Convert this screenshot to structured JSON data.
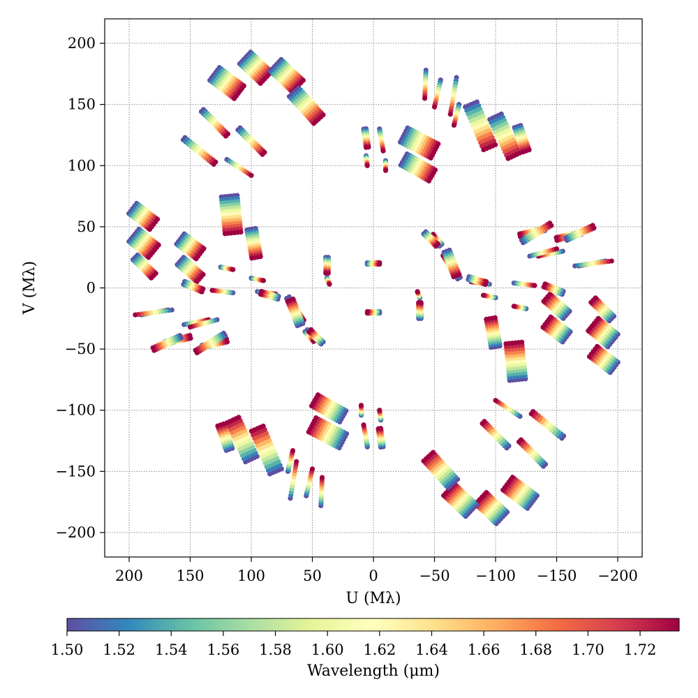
{
  "chart_data": {
    "type": "scatter",
    "title": "",
    "xlabel": "U (Mλ)",
    "ylabel": "V (Mλ)",
    "xlim": [
      220,
      -220
    ],
    "ylim": [
      -220,
      220
    ],
    "x_inverted": true,
    "xticks": [
      200,
      150,
      100,
      50,
      0,
      -50,
      -100,
      -150,
      -200
    ],
    "yticks": [
      200,
      150,
      100,
      50,
      0,
      -50,
      -100,
      -150,
      -200
    ],
    "xtick_labels": [
      "200",
      "150",
      "100",
      "50",
      "0",
      "−50",
      "−100",
      "−150",
      "−200"
    ],
    "ytick_labels": [
      "200",
      "150",
      "100",
      "50",
      "0",
      "−50",
      "−100",
      "−150",
      "−200"
    ],
    "grid": true,
    "symmetric_about_origin": true,
    "colorbar": {
      "label": "Wavelength (μm)",
      "colormap": "Spectral_r",
      "range": [
        1.5,
        1.735
      ],
      "ticks": [
        1.5,
        1.52,
        1.54,
        1.56,
        1.58,
        1.6,
        1.62,
        1.64,
        1.66,
        1.68,
        1.7,
        1.72
      ],
      "tick_labels": [
        "1.50",
        "1.52",
        "1.54",
        "1.56",
        "1.58",
        "1.60",
        "1.62",
        "1.64",
        "1.66",
        "1.68",
        "1.70",
        "1.72"
      ],
      "position": "bottom"
    },
    "wavelengths_um": [
      1.5,
      1.52,
      1.54,
      1.56,
      1.58,
      1.6,
      1.62,
      1.64,
      1.66,
      1.68,
      1.7,
      1.72,
      1.735
    ],
    "tracks": [
      {
        "start": [
          197,
          65
        ],
        "end": [
          180,
          52
        ],
        "baselines": 5,
        "spacing": 2.6
      },
      {
        "start": [
          196,
          43
        ],
        "end": [
          180,
          30
        ],
        "baselines": 6,
        "spacing": 2.6
      },
      {
        "start": [
          195,
          25
        ],
        "end": [
          180,
          10
        ],
        "baselines": 3,
        "spacing": 2.6
      },
      {
        "start": [
          158,
          40
        ],
        "end": [
          142,
          28
        ],
        "baselines": 5,
        "spacing": 2.6
      },
      {
        "start": [
          158,
          22
        ],
        "end": [
          142,
          8
        ],
        "baselines": 4,
        "spacing": 2.6
      },
      {
        "start": [
          155,
          4
        ],
        "end": [
          140,
          -2
        ],
        "baselines": 2,
        "spacing": 2.6
      },
      {
        "start": [
          118,
          75
        ],
        "end": [
          115,
          45
        ],
        "baselines": 6,
        "spacing": 2.6
      },
      {
        "start": [
          100,
          48
        ],
        "end": [
          96,
          25
        ],
        "baselines": 4,
        "spacing": 2.4
      },
      {
        "start": [
          100,
          8
        ],
        "end": [
          90,
          6
        ],
        "baselines": 1,
        "spacing": 2.0
      },
      {
        "start": [
          95,
          -3
        ],
        "end": [
          80,
          -5
        ],
        "baselines": 1,
        "spacing": 2.0
      },
      {
        "start": [
          125,
          17
        ],
        "end": [
          115,
          15
        ],
        "baselines": 1,
        "spacing": 2.0
      },
      {
        "start": [
          70,
          -8
        ],
        "end": [
          58,
          -27
        ],
        "baselines": 2,
        "spacing": 2.4
      },
      {
        "start": [
          55,
          -35
        ],
        "end": [
          48,
          -43
        ],
        "baselines": 2,
        "spacing": 2.4
      },
      {
        "start": [
          38,
          25
        ],
        "end": [
          38,
          12
        ],
        "baselines": 2,
        "spacing": 2.0
      },
      {
        "start": [
          38,
          8
        ],
        "end": [
          36,
          3
        ],
        "baselines": 1,
        "spacing": 2.0
      },
      {
        "start": [
          5,
          20
        ],
        "end": [
          -5,
          20
        ],
        "baselines": 2,
        "spacing": 1.2
      },
      {
        "start": [
          190,
          -22
        ],
        "end": [
          168,
          -18
        ],
        "baselines": 1,
        "spacing": 2.0
      },
      {
        "start": [
          170,
          -45
        ],
        "end": [
          150,
          -40
        ],
        "baselines": 2,
        "spacing": 2.4
      },
      {
        "start": [
          155,
          -30
        ],
        "end": [
          135,
          -26
        ],
        "baselines": 1,
        "spacing": 2.0
      },
      {
        "start": [
          140,
          -48
        ],
        "end": [
          120,
          -43
        ],
        "baselines": 2,
        "spacing": 2.4
      },
      {
        "start": [
          130,
          175
        ],
        "end": [
          110,
          160
        ],
        "baselines": 6,
        "spacing": 2.6
      },
      {
        "start": [
          105,
          188
        ],
        "end": [
          88,
          172
        ],
        "baselines": 6,
        "spacing": 2.6
      },
      {
        "start": [
          80,
          182
        ],
        "end": [
          62,
          165
        ],
        "baselines": 6,
        "spacing": 2.6
      },
      {
        "start": [
          65,
          160
        ],
        "end": [
          45,
          138
        ],
        "baselines": 5,
        "spacing": 2.6
      },
      {
        "start": [
          140,
          145
        ],
        "end": [
          120,
          125
        ],
        "baselines": 2,
        "spacing": 2.4
      },
      {
        "start": [
          155,
          122
        ],
        "end": [
          130,
          102
        ],
        "baselines": 2,
        "spacing": 2.4
      },
      {
        "start": [
          110,
          130
        ],
        "end": [
          90,
          110
        ],
        "baselines": 2,
        "spacing": 2.4
      },
      {
        "start": [
          120,
          105
        ],
        "end": [
          100,
          92
        ],
        "baselines": 1,
        "spacing": 2.0
      },
      {
        "start": [
          7,
          130
        ],
        "end": [
          5,
          115
        ],
        "baselines": 2,
        "spacing": 2.0
      },
      {
        "start": [
          6,
          108
        ],
        "end": [
          5,
          100
        ],
        "baselines": 1,
        "spacing": 2.0
      },
      {
        "start": [
          -5,
          130
        ],
        "end": [
          -8,
          112
        ],
        "baselines": 1,
        "spacing": 2.0
      },
      {
        "start": [
          -10,
          104
        ],
        "end": [
          -10,
          96
        ],
        "baselines": 1,
        "spacing": 2.0
      },
      {
        "start": [
          -25,
          125
        ],
        "end": [
          -50,
          112
        ],
        "baselines": 6,
        "spacing": 2.6
      },
      {
        "start": [
          -25,
          105
        ],
        "end": [
          -48,
          92
        ],
        "baselines": 5,
        "spacing": 2.6
      },
      {
        "start": [
          -43,
          178
        ],
        "end": [
          -42,
          155
        ],
        "baselines": 1,
        "spacing": 2.0
      },
      {
        "start": [
          -55,
          170
        ],
        "end": [
          -50,
          148
        ],
        "baselines": 1,
        "spacing": 2.0
      },
      {
        "start": [
          -68,
          172
        ],
        "end": [
          -63,
          142
        ],
        "baselines": 1,
        "spacing": 2.0
      },
      {
        "start": [
          -70,
          150
        ],
        "end": [
          -66,
          133
        ],
        "baselines": 1,
        "spacing": 2.0
      },
      {
        "start": [
          -80,
          150
        ],
        "end": [
          -95,
          115
        ],
        "baselines": 5,
        "spacing": 2.6
      },
      {
        "start": [
          -100,
          140
        ],
        "end": [
          -115,
          108
        ],
        "baselines": 5,
        "spacing": 2.6
      },
      {
        "start": [
          -118,
          132
        ],
        "end": [
          -125,
          112
        ],
        "baselines": 3,
        "spacing": 2.6
      },
      {
        "start": [
          -122,
          38
        ],
        "end": [
          -145,
          52
        ],
        "baselines": 2,
        "spacing": 2.4
      },
      {
        "start": [
          -158,
          40
        ],
        "end": [
          -180,
          50
        ],
        "baselines": 2,
        "spacing": 2.4
      },
      {
        "start": [
          -128,
          26
        ],
        "end": [
          -150,
          32
        ],
        "baselines": 1,
        "spacing": 2.0
      },
      {
        "start": [
          -165,
          18
        ],
        "end": [
          -195,
          22
        ],
        "baselines": 1,
        "spacing": 2.0
      },
      {
        "start": [
          -42,
          45
        ],
        "end": [
          -52,
          35
        ],
        "baselines": 2,
        "spacing": 2.4
      },
      {
        "start": [
          -60,
          30
        ],
        "end": [
          -68,
          10
        ],
        "baselines": 3,
        "spacing": 2.4
      },
      {
        "start": [
          -78,
          8
        ],
        "end": [
          -92,
          4
        ],
        "baselines": 2,
        "spacing": 2.4
      },
      {
        "start": [
          -115,
          4
        ],
        "end": [
          -132,
          2
        ],
        "baselines": 1,
        "spacing": 2.0
      }
    ]
  }
}
